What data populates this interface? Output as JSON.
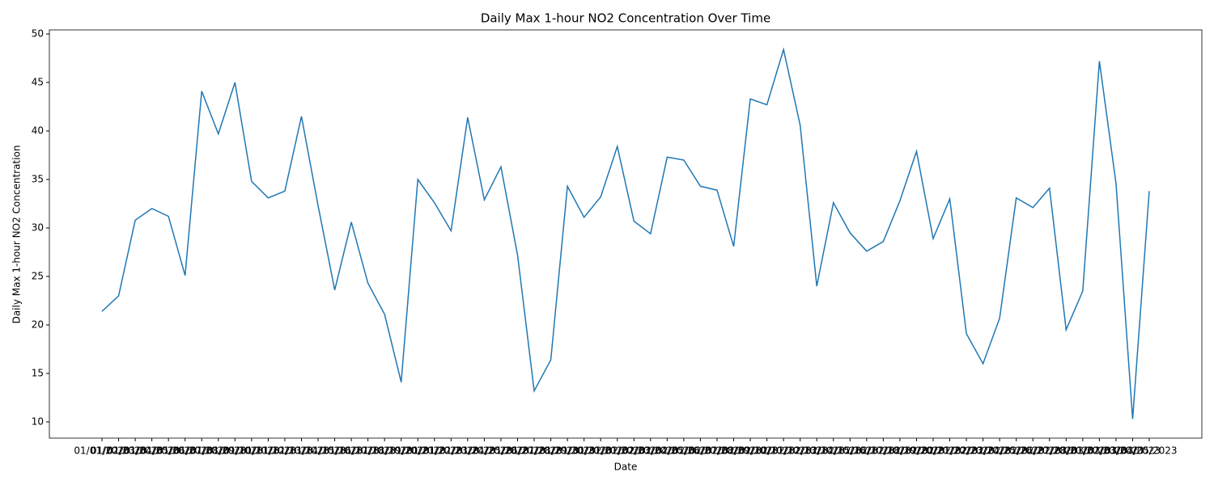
{
  "chart_data": {
    "type": "line",
    "title": "Daily Max 1-hour NO2 Concentration Over Time",
    "xlabel": "Date",
    "ylabel": "Daily Max 1-hour NO2 Concentration",
    "categories": [
      "01/01/2023",
      "01/02/2023",
      "01/03/2023",
      "01/04/2023",
      "01/05/2023",
      "01/06/2023",
      "01/07/2023",
      "01/08/2023",
      "01/09/2023",
      "01/10/2023",
      "01/11/2023",
      "01/12/2023",
      "01/13/2023",
      "01/14/2023",
      "01/15/2023",
      "01/16/2023",
      "01/17/2023",
      "01/18/2023",
      "01/19/2023",
      "01/20/2023",
      "01/21/2023",
      "01/22/2023",
      "01/23/2023",
      "01/24/2023",
      "01/25/2023",
      "01/26/2023",
      "01/27/2023",
      "01/28/2023",
      "01/29/2023",
      "01/30/2023",
      "01/31/2023",
      "02/01/2023",
      "02/02/2023",
      "02/03/2023",
      "02/04/2023",
      "02/05/2023",
      "02/06/2023",
      "02/07/2023",
      "02/08/2023",
      "02/09/2023",
      "02/10/2023",
      "02/11/2023",
      "02/12/2023",
      "02/13/2023",
      "02/14/2023",
      "02/15/2023",
      "02/16/2023",
      "02/17/2023",
      "02/18/2023",
      "02/19/2023",
      "02/20/2023",
      "02/21/2023",
      "02/22/2023",
      "02/23/2023",
      "02/24/2023",
      "02/25/2023",
      "02/26/2023",
      "02/27/2023",
      "02/28/2023",
      "03/01/2023",
      "03/02/2023",
      "03/03/2023",
      "03/04/2023",
      "03/05/2023"
    ],
    "series": [
      {
        "name": "NO2",
        "color": "#1f77b4",
        "values": [
          21.4,
          23.0,
          30.8,
          32.0,
          31.2,
          25.1,
          44.1,
          39.7,
          45.0,
          34.8,
          33.1,
          33.8,
          41.5,
          32.3,
          23.6,
          30.6,
          24.3,
          21.1,
          14.1,
          35.0,
          32.6,
          29.7,
          41.4,
          32.9,
          36.3,
          27.2,
          13.2,
          16.4,
          34.3,
          31.1,
          33.2,
          38.4,
          30.7,
          29.4,
          37.3,
          37.0,
          34.3,
          33.9,
          28.1,
          43.3,
          42.7,
          48.4,
          40.6,
          24.0,
          32.6,
          29.5,
          27.6,
          28.6,
          32.8,
          37.9,
          28.9,
          33.0,
          19.1,
          16.0,
          20.7,
          33.1,
          32.1,
          34.1,
          19.5,
          23.5,
          47.2,
          34.6,
          10.3,
          33.8
        ]
      }
    ],
    "ylim": [
      8.33,
      50.42
    ],
    "yticks": [
      10,
      15,
      20,
      25,
      30,
      35,
      40,
      45,
      50
    ]
  }
}
